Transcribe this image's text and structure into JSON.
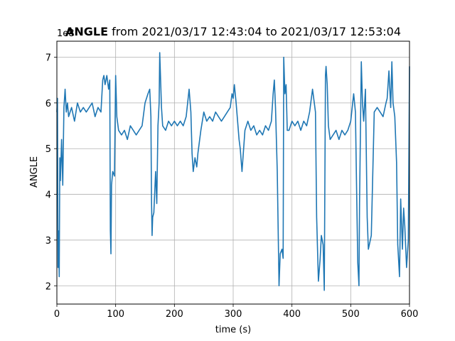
{
  "chart_data": {
    "type": "line",
    "title_bold": "ANGLE",
    "title_rest": " from 2021/03/17 12:43:04 to 2021/03/17 12:53:04",
    "xlabel": "time (s)",
    "ylabel": "ANGLE",
    "offset_label": "1e8",
    "xlim": [
      0,
      600
    ],
    "ylim": [
      1.6,
      7.35
    ],
    "x_ticks": [
      0,
      100,
      200,
      300,
      400,
      500,
      600
    ],
    "y_ticks": [
      2,
      3,
      4,
      5,
      6,
      7
    ],
    "grid": true,
    "color": "#1f77b4",
    "series": [
      {
        "x": [
          0,
          1,
          2,
          3,
          4,
          5,
          6,
          8,
          10,
          12,
          14,
          16,
          18,
          20,
          25,
          30,
          35,
          40,
          45,
          50,
          55,
          60,
          65,
          70,
          75,
          78,
          80,
          82,
          85,
          88,
          90,
          91,
          92,
          93,
          95,
          98,
          100,
          102,
          105,
          110,
          115,
          120,
          125,
          130,
          135,
          140,
          145,
          150,
          155,
          158,
          160,
          161,
          162,
          163,
          165,
          168,
          170,
          172,
          174,
          175,
          176,
          178,
          180,
          185,
          190,
          195,
          200,
          205,
          210,
          215,
          220,
          225,
          228,
          230,
          232,
          235,
          238,
          240,
          245,
          250,
          255,
          260,
          265,
          270,
          275,
          280,
          285,
          290,
          295,
          298,
          300,
          302,
          305,
          310,
          312,
          315,
          320,
          325,
          330,
          335,
          340,
          345,
          350,
          355,
          360,
          365,
          368,
          370,
          372,
          375,
          378,
          380,
          383,
          385,
          386,
          388,
          390,
          392,
          395,
          400,
          405,
          410,
          415,
          420,
          425,
          430,
          435,
          438,
          440,
          442,
          445,
          448,
          450,
          453,
          455,
          457,
          458,
          460,
          462,
          465,
          470,
          475,
          480,
          485,
          490,
          495,
          500,
          505,
          508,
          510,
          512,
          514,
          515,
          518,
          520,
          522,
          525,
          528,
          530,
          535,
          540,
          545,
          550,
          555,
          560,
          562,
          565,
          568,
          570,
          572,
          575,
          578,
          580,
          583,
          585,
          588,
          590,
          592,
          595,
          598,
          600
        ],
        "y": [
          5.8,
          6.1,
          2.4,
          3.2,
          2.2,
          4.8,
          4.3,
          5.2,
          4.2,
          5.9,
          6.3,
          5.8,
          6.0,
          5.7,
          5.9,
          5.6,
          6.0,
          5.8,
          5.9,
          5.8,
          5.9,
          6.0,
          5.7,
          5.9,
          5.8,
          6.5,
          6.6,
          6.4,
          6.6,
          6.3,
          6.5,
          3.2,
          2.7,
          4.2,
          4.5,
          4.4,
          6.6,
          5.7,
          5.4,
          5.3,
          5.4,
          5.2,
          5.5,
          5.4,
          5.3,
          5.4,
          5.5,
          6.0,
          6.2,
          6.3,
          5.7,
          3.9,
          3.1,
          3.5,
          3.6,
          4.5,
          3.8,
          5.5,
          6.0,
          7.1,
          6.7,
          5.9,
          5.5,
          5.4,
          5.6,
          5.5,
          5.6,
          5.5,
          5.6,
          5.5,
          5.7,
          6.3,
          5.8,
          4.9,
          4.5,
          4.8,
          4.6,
          4.9,
          5.4,
          5.8,
          5.6,
          5.7,
          5.6,
          5.8,
          5.7,
          5.6,
          5.7,
          5.8,
          5.9,
          6.2,
          6.1,
          6.4,
          6.0,
          5.2,
          5.0,
          4.5,
          5.4,
          5.6,
          5.4,
          5.5,
          5.3,
          5.4,
          5.3,
          5.5,
          5.4,
          5.6,
          6.2,
          6.5,
          5.9,
          4.5,
          2.0,
          2.7,
          2.8,
          2.6,
          7.0,
          6.2,
          6.4,
          5.4,
          5.4,
          5.6,
          5.5,
          5.6,
          5.4,
          5.6,
          5.5,
          5.8,
          6.3,
          6.0,
          5.8,
          3.5,
          2.1,
          2.6,
          3.1,
          2.9,
          1.9,
          6.6,
          6.8,
          6.4,
          5.5,
          5.2,
          5.3,
          5.4,
          5.2,
          5.4,
          5.3,
          5.4,
          5.6,
          6.2,
          5.8,
          4.1,
          2.5,
          2.0,
          3.8,
          6.9,
          6.0,
          5.6,
          6.3,
          3.5,
          2.8,
          3.1,
          5.8,
          5.9,
          5.8,
          5.7,
          6.0,
          6.1,
          6.7,
          5.9,
          6.9,
          6.0,
          5.7,
          4.7,
          2.9,
          2.2,
          3.9,
          2.8,
          3.7,
          3.3,
          2.4,
          3.0,
          6.8
        ]
      }
    ]
  }
}
